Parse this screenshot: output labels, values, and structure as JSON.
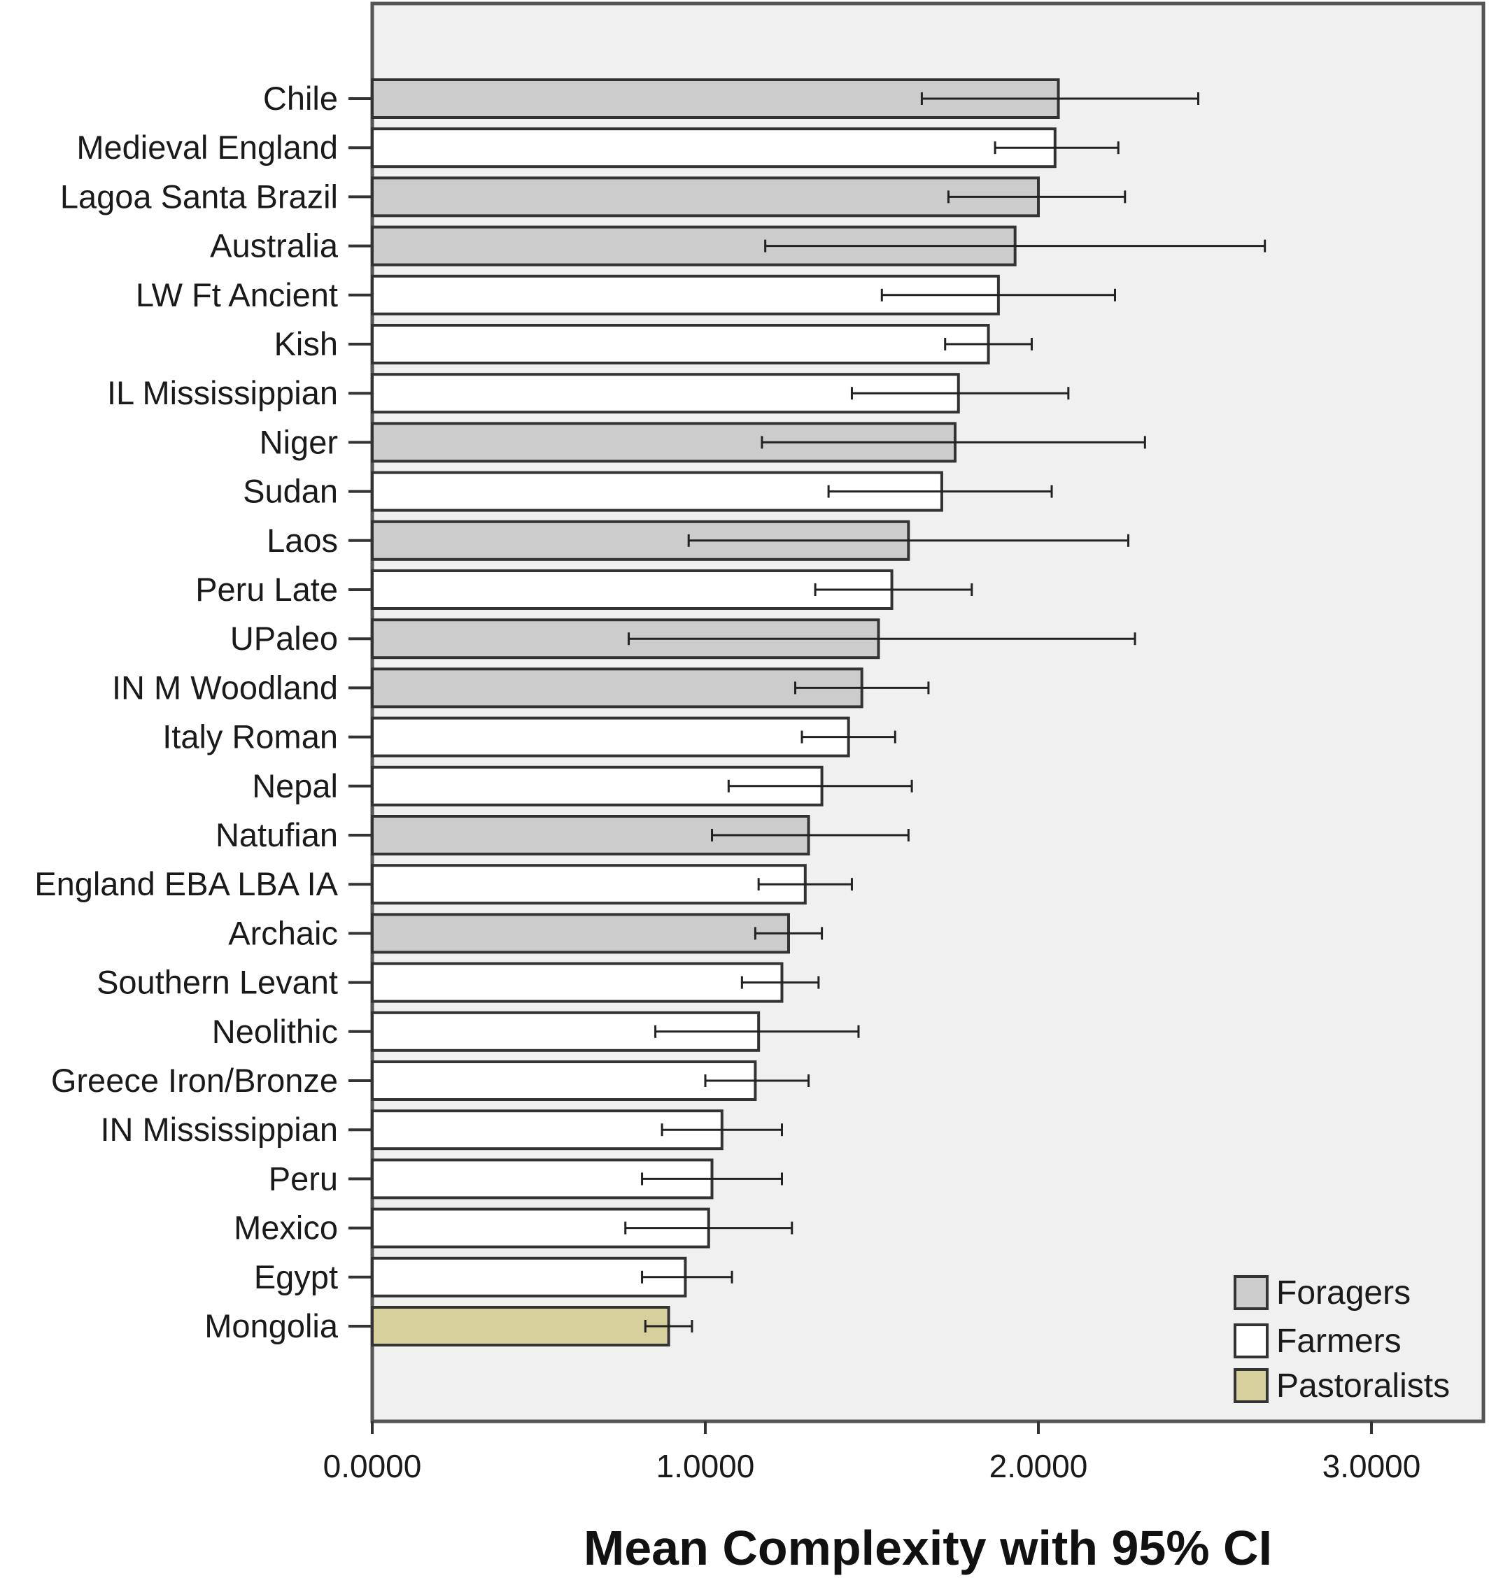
{
  "chart_data": {
    "type": "bar",
    "orientation": "horizontal",
    "xlabel": "Mean Complexity with 95% CI",
    "xlim": [
      0,
      3.35
    ],
    "xticks": [
      0,
      1,
      2,
      3
    ],
    "xtick_labels": [
      "0.0000",
      "1.0000",
      "2.0000",
      "3.0000"
    ],
    "grid": false,
    "legend_position": "bottom-right",
    "groups": [
      {
        "name": "Foragers",
        "color": "#cccccc"
      },
      {
        "name": "Farmers",
        "color": "#ffffff"
      },
      {
        "name": "Pastoralists",
        "color": "#d6d09c"
      }
    ],
    "bars": [
      {
        "category": "Chile",
        "group": "Foragers",
        "mean": 2.06,
        "ci": [
          1.65,
          2.48
        ]
      },
      {
        "category": "Medieval England",
        "group": "Farmers",
        "mean": 2.05,
        "ci": [
          1.87,
          2.24
        ]
      },
      {
        "category": "Lagoa Santa Brazil",
        "group": "Foragers",
        "mean": 2.0,
        "ci": [
          1.73,
          2.26
        ]
      },
      {
        "category": "Australia",
        "group": "Foragers",
        "mean": 1.93,
        "ci": [
          1.18,
          2.68
        ]
      },
      {
        "category": "LW Ft Ancient",
        "group": "Farmers",
        "mean": 1.88,
        "ci": [
          1.53,
          2.23
        ]
      },
      {
        "category": "Kish",
        "group": "Farmers",
        "mean": 1.85,
        "ci": [
          1.72,
          1.98
        ]
      },
      {
        "category": "IL Mississippian",
        "group": "Farmers",
        "mean": 1.76,
        "ci": [
          1.44,
          2.09
        ]
      },
      {
        "category": "Niger",
        "group": "Foragers",
        "mean": 1.75,
        "ci": [
          1.17,
          2.32
        ]
      },
      {
        "category": "Sudan",
        "group": "Farmers",
        "mean": 1.71,
        "ci": [
          1.37,
          2.04
        ]
      },
      {
        "category": "Laos",
        "group": "Foragers",
        "mean": 1.61,
        "ci": [
          0.95,
          2.27
        ]
      },
      {
        "category": "Peru Late",
        "group": "Farmers",
        "mean": 1.56,
        "ci": [
          1.33,
          1.8
        ]
      },
      {
        "category": "UPaleo",
        "group": "Foragers",
        "mean": 1.52,
        "ci": [
          0.77,
          2.29
        ]
      },
      {
        "category": "IN M Woodland",
        "group": "Foragers",
        "mean": 1.47,
        "ci": [
          1.27,
          1.67
        ]
      },
      {
        "category": "Italy Roman",
        "group": "Farmers",
        "mean": 1.43,
        "ci": [
          1.29,
          1.57
        ]
      },
      {
        "category": "Nepal",
        "group": "Farmers",
        "mean": 1.35,
        "ci": [
          1.07,
          1.62
        ]
      },
      {
        "category": "Natufian",
        "group": "Foragers",
        "mean": 1.31,
        "ci": [
          1.02,
          1.61
        ]
      },
      {
        "category": "England EBA LBA IA",
        "group": "Farmers",
        "mean": 1.3,
        "ci": [
          1.16,
          1.44
        ]
      },
      {
        "category": "Archaic",
        "group": "Foragers",
        "mean": 1.25,
        "ci": [
          1.15,
          1.35
        ]
      },
      {
        "category": "Southern Levant",
        "group": "Farmers",
        "mean": 1.23,
        "ci": [
          1.11,
          1.34
        ]
      },
      {
        "category": "Neolithic",
        "group": "Farmers",
        "mean": 1.16,
        "ci": [
          0.85,
          1.46
        ]
      },
      {
        "category": "Greece Iron/Bronze",
        "group": "Farmers",
        "mean": 1.15,
        "ci": [
          1.0,
          1.31
        ]
      },
      {
        "category": "IN Mississippian",
        "group": "Farmers",
        "mean": 1.05,
        "ci": [
          0.87,
          1.23
        ]
      },
      {
        "category": "Peru",
        "group": "Farmers",
        "mean": 1.02,
        "ci": [
          0.81,
          1.23
        ]
      },
      {
        "category": "Mexico",
        "group": "Farmers",
        "mean": 1.01,
        "ci": [
          0.76,
          1.26
        ]
      },
      {
        "category": "Egypt",
        "group": "Farmers",
        "mean": 0.94,
        "ci": [
          0.81,
          1.08
        ]
      },
      {
        "category": "Mongolia",
        "group": "Pastoralists",
        "mean": 0.89,
        "ci": [
          0.82,
          0.96
        ]
      }
    ]
  }
}
